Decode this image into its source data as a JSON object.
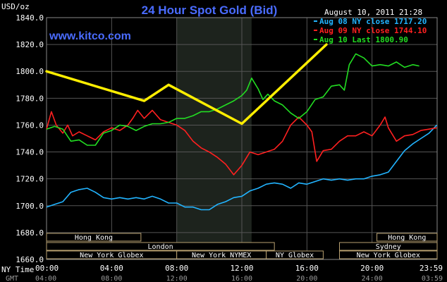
{
  "chart_data": {
    "type": "line",
    "title": "24 Hour Spot Gold (Bid)",
    "brand": "www.kitco.com",
    "timestamp": "August 10, 2011 21:28",
    "ylabel": "USD/oz",
    "ylim": [
      1660,
      1840
    ],
    "yticks": [
      "1840.0",
      "1820.0",
      "1800.0",
      "1780.0",
      "1760.0",
      "1740.0",
      "1720.0",
      "1700.0",
      "1680.0",
      "1660.0"
    ],
    "x_time_labels": [
      "00:00",
      "04:00",
      "08:00",
      "12:00",
      "16:00",
      "20:00",
      "23:59"
    ],
    "x_gmt_labels": [
      "04:00",
      "08:00",
      "12:00",
      "16:00",
      "20:00",
      "24:00",
      "03:59"
    ],
    "x_row_labels": [
      "NY Time",
      "GMT"
    ],
    "series": [
      {
        "name": "Aug 08 NY close 1717.20",
        "color": "#22b4ff",
        "points": [
          [
            0,
            1699
          ],
          [
            0.5,
            1701
          ],
          [
            1.0,
            1703
          ],
          [
            1.5,
            1710
          ],
          [
            2.0,
            1712
          ],
          [
            2.5,
            1713
          ],
          [
            3.0,
            1710
          ],
          [
            3.5,
            1706
          ],
          [
            4.0,
            1705
          ],
          [
            4.5,
            1706
          ],
          [
            5.0,
            1705
          ],
          [
            5.5,
            1706
          ],
          [
            6.0,
            1705
          ],
          [
            6.5,
            1707
          ],
          [
            7.0,
            1705
          ],
          [
            7.5,
            1702
          ],
          [
            8.0,
            1702
          ],
          [
            8.5,
            1699
          ],
          [
            9.0,
            1699
          ],
          [
            9.5,
            1697
          ],
          [
            10.0,
            1697
          ],
          [
            10.5,
            1701
          ],
          [
            11.0,
            1703
          ],
          [
            11.5,
            1706
          ],
          [
            12.0,
            1707
          ],
          [
            12.5,
            1711
          ],
          [
            13.0,
            1713
          ],
          [
            13.5,
            1716
          ],
          [
            14.0,
            1717
          ],
          [
            14.5,
            1716
          ],
          [
            15.0,
            1713
          ],
          [
            15.5,
            1717
          ],
          [
            16.0,
            1716
          ],
          [
            16.5,
            1718
          ],
          [
            17.0,
            1720
          ],
          [
            17.5,
            1719
          ],
          [
            18.0,
            1720
          ],
          [
            18.5,
            1719
          ],
          [
            19.0,
            1720
          ],
          [
            19.5,
            1720
          ],
          [
            20.0,
            1722
          ],
          [
            20.5,
            1723
          ],
          [
            21.0,
            1725
          ],
          [
            21.5,
            1733
          ],
          [
            22.0,
            1741
          ],
          [
            22.5,
            1746
          ],
          [
            23.0,
            1750
          ],
          [
            23.5,
            1754
          ],
          [
            23.98,
            1760
          ]
        ]
      },
      {
        "name": "Aug 09 NY close 1744.10",
        "color": "#ff2020",
        "points": [
          [
            0,
            1757
          ],
          [
            0.3,
            1770
          ],
          [
            0.6,
            1760
          ],
          [
            1.0,
            1754
          ],
          [
            1.3,
            1760
          ],
          [
            1.6,
            1752
          ],
          [
            2.0,
            1755
          ],
          [
            2.5,
            1752
          ],
          [
            3.0,
            1749
          ],
          [
            3.5,
            1755
          ],
          [
            4.0,
            1758
          ],
          [
            4.5,
            1756
          ],
          [
            5.0,
            1760
          ],
          [
            5.3,
            1765
          ],
          [
            5.6,
            1771
          ],
          [
            6.0,
            1765
          ],
          [
            6.5,
            1771
          ],
          [
            7.0,
            1764
          ],
          [
            7.5,
            1762
          ],
          [
            8.0,
            1760
          ],
          [
            8.5,
            1756
          ],
          [
            9.0,
            1748
          ],
          [
            9.5,
            1743
          ],
          [
            10.0,
            1740
          ],
          [
            10.5,
            1736
          ],
          [
            11.0,
            1731
          ],
          [
            11.5,
            1723
          ],
          [
            12.0,
            1730
          ],
          [
            12.5,
            1740
          ],
          [
            13.0,
            1738
          ],
          [
            13.5,
            1740
          ],
          [
            14.0,
            1742
          ],
          [
            14.5,
            1748
          ],
          [
            15.0,
            1760
          ],
          [
            15.5,
            1766
          ],
          [
            16.0,
            1760
          ],
          [
            16.3,
            1755
          ],
          [
            16.6,
            1733
          ],
          [
            17.0,
            1741
          ],
          [
            17.5,
            1742
          ],
          [
            18.0,
            1748
          ],
          [
            18.5,
            1752
          ],
          [
            19.0,
            1752
          ],
          [
            19.5,
            1755
          ],
          [
            20.0,
            1752
          ],
          [
            20.5,
            1760
          ],
          [
            20.8,
            1766
          ],
          [
            21.0,
            1758
          ],
          [
            21.5,
            1748
          ],
          [
            22.0,
            1752
          ],
          [
            22.5,
            1753
          ],
          [
            23.0,
            1756
          ],
          [
            23.5,
            1757
          ],
          [
            23.98,
            1758
          ]
        ]
      },
      {
        "name": "Aug 10 Last 1800.90",
        "color": "#22dd22",
        "points": [
          [
            0,
            1757
          ],
          [
            0.5,
            1759
          ],
          [
            1.0,
            1757
          ],
          [
            1.5,
            1748
          ],
          [
            2.0,
            1749
          ],
          [
            2.5,
            1745
          ],
          [
            3.0,
            1745
          ],
          [
            3.5,
            1754
          ],
          [
            4.0,
            1756
          ],
          [
            4.5,
            1760
          ],
          [
            5.0,
            1759
          ],
          [
            5.5,
            1756
          ],
          [
            6.0,
            1759
          ],
          [
            6.5,
            1761
          ],
          [
            7.0,
            1761
          ],
          [
            7.5,
            1762
          ],
          [
            8.0,
            1765
          ],
          [
            8.5,
            1765
          ],
          [
            9.0,
            1767
          ],
          [
            9.5,
            1770
          ],
          [
            10.0,
            1770
          ],
          [
            10.5,
            1772
          ],
          [
            11.0,
            1775
          ],
          [
            11.5,
            1778
          ],
          [
            12.0,
            1782
          ],
          [
            12.3,
            1786
          ],
          [
            12.6,
            1795
          ],
          [
            13.0,
            1787
          ],
          [
            13.3,
            1779
          ],
          [
            13.6,
            1783
          ],
          [
            14.0,
            1778
          ],
          [
            14.5,
            1775
          ],
          [
            15.0,
            1769
          ],
          [
            15.5,
            1765
          ],
          [
            16.0,
            1770
          ],
          [
            16.5,
            1779
          ],
          [
            17.0,
            1781
          ],
          [
            17.5,
            1789
          ],
          [
            18.0,
            1790
          ],
          [
            18.3,
            1786
          ],
          [
            18.6,
            1805
          ],
          [
            19.0,
            1813
          ],
          [
            19.5,
            1810
          ],
          [
            20.0,
            1804
          ],
          [
            20.5,
            1805
          ],
          [
            21.0,
            1804
          ],
          [
            21.5,
            1807
          ],
          [
            22.0,
            1803
          ],
          [
            22.5,
            1805
          ],
          [
            22.9,
            1804
          ]
        ]
      }
    ],
    "annotation_line": {
      "color": "#ffee00",
      "points": [
        [
          0,
          1800
        ],
        [
          6.0,
          1778
        ],
        [
          7.5,
          1790
        ],
        [
          12.0,
          1761
        ],
        [
          17.2,
          1820
        ]
      ]
    },
    "shaded_region": [
      8.0,
      12.6
    ],
    "market_sessions": [
      {
        "label": "Hong Kong",
        "start": 0,
        "end": 5.8,
        "row": 0
      },
      {
        "label": "London",
        "start": 0,
        "end": 14.0,
        "row": 1
      },
      {
        "label": "New York Globex",
        "start": 0,
        "end": 8.0,
        "row": 2
      },
      {
        "label": "New York NYMEX",
        "start": 8.0,
        "end": 13.5,
        "row": 2
      },
      {
        "label": "NY Globex",
        "start": 13.5,
        "end": 17.0,
        "row": 2
      },
      {
        "label": "Hong Kong",
        "start": 20.3,
        "end": 24,
        "row": 0
      },
      {
        "label": "Sydney",
        "start": 18.0,
        "end": 24,
        "row": 1
      },
      {
        "label": "New York Globex",
        "start": 18.0,
        "end": 24,
        "row": 2
      }
    ]
  }
}
